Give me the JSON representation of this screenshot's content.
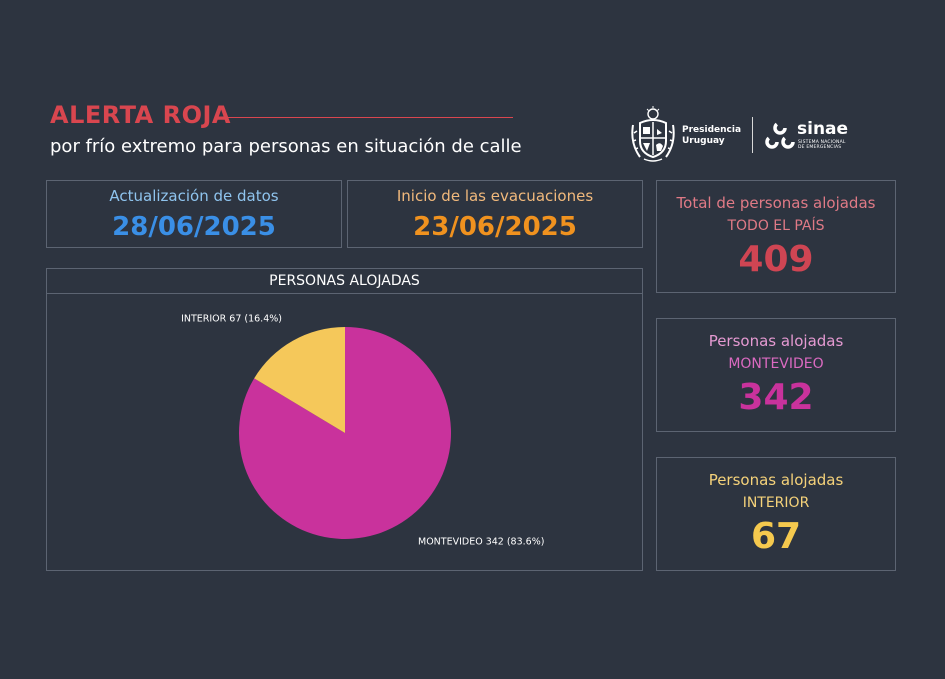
{
  "header": {
    "title": "ALERTA ROJA",
    "subtitle": "por frío extremo para personas en situación de calle",
    "title_color": "#d9464f"
  },
  "logos": {
    "presidencia": [
      "Presidencia",
      "Uruguay"
    ],
    "sinae_name": "sinae",
    "sinae_full": [
      "SISTEMA NACIONAL",
      "DE EMERGENCIAS"
    ]
  },
  "update_box": {
    "label": "Actualización de datos",
    "value": "28/06/2025",
    "label_color": "#8fc4ee",
    "value_color": "#3a8fe6"
  },
  "evac_box": {
    "label": "Inicio de las evacuaciones",
    "value": "23/06/2025",
    "label_color": "#f1b97c",
    "value_color": "#f0921f"
  },
  "total_box": {
    "label": "Total de personas alojadas",
    "sub": "TODO EL PAÍS",
    "value": "409",
    "label_color": "#e07a86",
    "value_color": "#cf4553"
  },
  "mvd_box": {
    "label": "Personas alojadas",
    "sub": "MONTEVIDEO",
    "value": "342",
    "label_color": "#e59ad2",
    "sub_color": "#db6ac1",
    "value_color": "#c9329c"
  },
  "int_box": {
    "label": "Personas alojadas",
    "sub": "INTERIOR",
    "value": "67",
    "label_color": "#f5d27a",
    "sub_color": "#f5d27a",
    "value_color": "#f5c94e"
  },
  "chart_data": {
    "type": "pie",
    "title": "PERSONAS ALOJADAS",
    "slices": [
      {
        "label": "MONTEVIDEO",
        "value": 342,
        "percent": 83.6,
        "color": "#c9329c",
        "text": "MONTEVIDEO 342 (83.6%)"
      },
      {
        "label": "INTERIOR",
        "value": 67,
        "percent": 16.4,
        "color": "#f5c85a",
        "text": "INTERIOR 67 (16.4%)"
      }
    ]
  }
}
